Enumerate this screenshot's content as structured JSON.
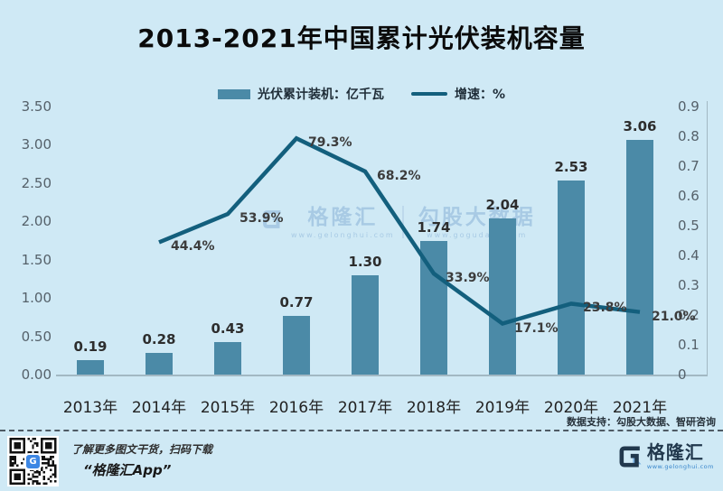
{
  "title": "2013-2021年中国累计光伏装机容量",
  "colors": {
    "background": "#cfe9f5",
    "bar": "#4b8aa7",
    "line": "#135f7d",
    "watermark": "#a6c9e4",
    "logo_navy": "#21384d",
    "logo_blue": "#3d87e4"
  },
  "legend": [
    {
      "label": "光伏累计装机：亿千瓦",
      "type": "bar"
    },
    {
      "label": "增速：%",
      "type": "line"
    }
  ],
  "chart_data": {
    "type": "bar+line combo",
    "categories": [
      "2013年",
      "2014年",
      "2015年",
      "2016年",
      "2017年",
      "2018年",
      "2019年",
      "2020年",
      "2021年"
    ],
    "series": [
      {
        "name": "光伏累计装机：亿千瓦",
        "type": "bar",
        "axis": "left",
        "values": [
          0.19,
          0.28,
          0.43,
          0.77,
          1.3,
          1.74,
          2.04,
          2.53,
          3.06
        ],
        "value_labels": [
          "0.19",
          "0.28",
          "0.43",
          "0.77",
          "1.30",
          "1.74",
          "2.04",
          "2.53",
          "3.06"
        ]
      },
      {
        "name": "增速：%",
        "type": "line",
        "axis": "right",
        "x_start_index": 1,
        "values": [
          44.4,
          53.9,
          79.3,
          68.2,
          33.9,
          17.1,
          23.8,
          21.0
        ],
        "value_labels": [
          "44.4%",
          "53.9%",
          "79.3%",
          "68.2%",
          "33.9%",
          "17.1%",
          "23.8%",
          "21.0%"
        ]
      }
    ],
    "left_axis": {
      "ticks": [
        "0.00",
        "0.50",
        "1.00",
        "1.50",
        "2.00",
        "2.50",
        "3.00",
        "3.50"
      ],
      "min": 0,
      "max": 3.5
    },
    "right_axis": {
      "ticks": [
        "0",
        "0.1",
        "0.2",
        "0.3",
        "0.4",
        "0.5",
        "0.6",
        "0.7",
        "0.8",
        "0.9"
      ],
      "min": 0,
      "max": 0.9
    },
    "grid": false,
    "legend_position": "top"
  },
  "watermark": {
    "brand": "格隆汇",
    "brand_url": "www.gelonghui.com",
    "partner": "勾股大数据",
    "partner_url": "www.gogudata.com"
  },
  "source_note": "数据支持：勾股大数据、智研咨询",
  "footer": {
    "qr_caption_line1": "了解更多图文干货，扫码下载",
    "qr_caption_line2": "“格隆汇App”",
    "qr_logo_letter": "G",
    "logo_text": "格隆汇",
    "logo_url": "www.gelonghui.com"
  }
}
